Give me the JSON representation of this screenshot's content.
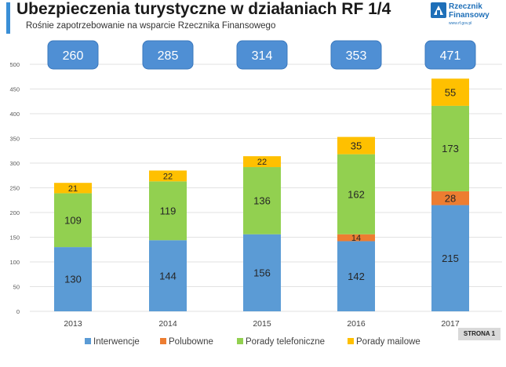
{
  "header": {
    "title": "Ubezpieczenia turystyczne w działaniach RF 1/4",
    "subtitle": "Rośnie zapotrzebowanie na wsparcie Rzecznika Finansowego"
  },
  "logo": {
    "line1": "Rzecznik",
    "line2": "Finansowy",
    "url": "www.rf.gov.pl"
  },
  "footer": {
    "page_label": "STRONA",
    "page_number": "1"
  },
  "chart_data": {
    "type": "bar",
    "stacked": true,
    "categories": [
      "2013",
      "2014",
      "2015",
      "2016",
      "2017"
    ],
    "series": [
      {
        "name": "Interwencje",
        "color": "#5b9bd5",
        "values": [
          130,
          144,
          156,
          142,
          215
        ]
      },
      {
        "name": "Polubowne",
        "color": "#ed7d31",
        "values": [
          0,
          0,
          0,
          14,
          28
        ]
      },
      {
        "name": "Porady telefoniczne",
        "color": "#92d050",
        "values": [
          109,
          119,
          136,
          162,
          173
        ]
      },
      {
        "name": "Porady mailowe",
        "color": "#ffc000",
        "values": [
          21,
          22,
          22,
          35,
          55
        ]
      }
    ],
    "totals": [
      260,
      285,
      314,
      353,
      471
    ],
    "total_box_color": "#4f8fd4",
    "ylim": [
      0,
      500
    ],
    "yticks": [
      0,
      50,
      100,
      150,
      200,
      250,
      300,
      350,
      400,
      450,
      500
    ],
    "grid": true,
    "legend_position": "bottom"
  }
}
